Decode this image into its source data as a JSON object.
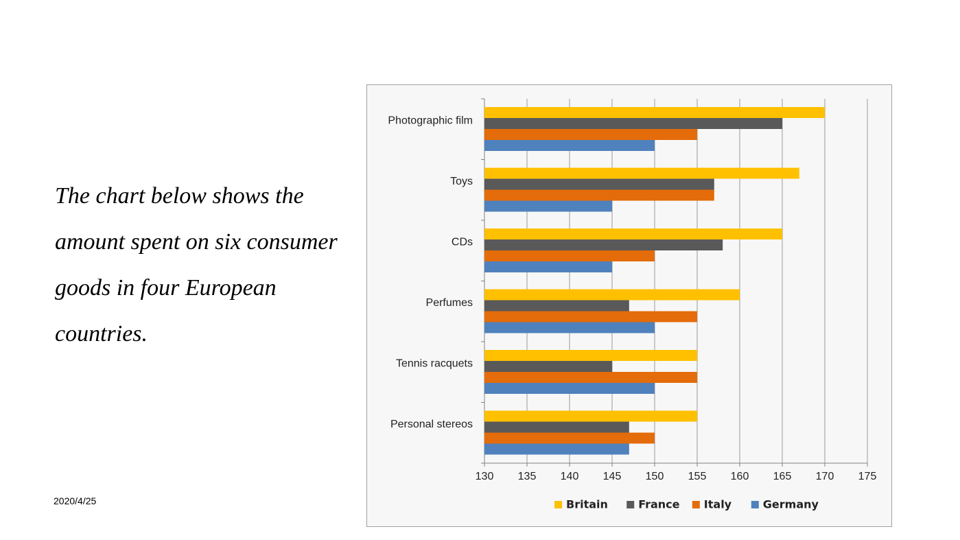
{
  "slide": {
    "caption_lines": [
      "The chart below shows the",
      "amount spent on six consumer",
      "goods in four European",
      "countries."
    ],
    "date": "2020/4/25"
  },
  "colors": {
    "Britain": "#FFC000",
    "France": "#595959",
    "Italy": "#E46C0A",
    "Germany": "#4F81BD"
  },
  "chart_data": {
    "type": "bar",
    "orientation": "horizontal",
    "title": "",
    "xlabel": "",
    "ylabel": "",
    "categories": [
      "Photographic film",
      "Toys",
      "CDs",
      "Perfumes",
      "Tennis racquets",
      "Personal stereos"
    ],
    "series": [
      {
        "name": "Britain",
        "values": [
          170,
          167,
          165,
          160,
          155,
          155
        ]
      },
      {
        "name": "France",
        "values": [
          165,
          157,
          158,
          147,
          145,
          147
        ]
      },
      {
        "name": "Italy",
        "values": [
          155,
          157,
          150,
          155,
          155,
          150
        ]
      },
      {
        "name": "Germany",
        "values": [
          150,
          145,
          145,
          150,
          150,
          147
        ]
      }
    ],
    "xlim": [
      130,
      175
    ],
    "xticks": [
      130,
      135,
      140,
      145,
      150,
      155,
      160,
      165,
      170,
      175
    ],
    "grid": "vertical",
    "legend": "bottom"
  }
}
